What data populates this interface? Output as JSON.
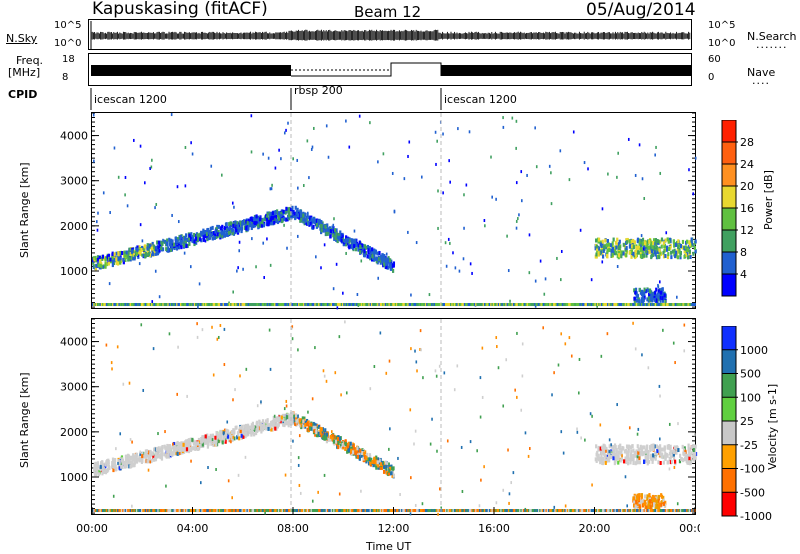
{
  "header": {
    "station": "Kapuskasing (fitACF)",
    "beam": "Beam 12",
    "date": "05/Aug/2014"
  },
  "nsky": {
    "left_label": "N.Sky",
    "left_ticks": [
      "10^5",
      "10^0"
    ],
    "right_ticks": [
      "10^5",
      "10^0"
    ],
    "right_label": "N.Search",
    "right_legend": "......."
  },
  "freq": {
    "left_label_1": "Freq.",
    "left_label_2": "[MHz]",
    "left_ticks": [
      "18",
      "8"
    ],
    "right_ticks": [
      "60",
      "0"
    ],
    "right_label": "Nave",
    "right_legend": "....",
    "cpid_label": "CPID",
    "modes": [
      "icescan 1200",
      "rbsp 200",
      "icescan 1200"
    ]
  },
  "chart_data": [
    {
      "type": "heatmap",
      "name": "power",
      "ylabel": "Slant Range [km]",
      "yticks": [
        "1000",
        "2000",
        "3000",
        "4000"
      ],
      "ylim": [
        180,
        4500
      ],
      "xlim": [
        "00:00",
        "24:00"
      ],
      "colorbar_label": "Power [dB]",
      "colorbar_ticks": [
        "4",
        "8",
        "12",
        "16",
        "20",
        "24",
        "28"
      ],
      "colorbar_colors": [
        "#0000ff",
        "#2060d0",
        "#40a060",
        "#60c040",
        "#e8d830",
        "#ff9020",
        "#ff6010",
        "#ff2000"
      ],
      "features": [
        {
          "t0": 0.0,
          "t1": 2.5,
          "r0": 1150,
          "r1": 1500,
          "level": "low-mid"
        },
        {
          "t0": 2.5,
          "t1": 8.0,
          "r0": 1500,
          "r1": 2300,
          "level": "low"
        },
        {
          "t0": 8.0,
          "t1": 12.0,
          "r0": 1100,
          "r1": 2300,
          "level": "low"
        },
        {
          "t0": 20.0,
          "t1": 24.0,
          "r0": 1300,
          "r1": 1700,
          "level": "mid"
        },
        {
          "t0": 21.5,
          "t1": 22.8,
          "r0": 300,
          "r1": 600,
          "level": "low"
        }
      ]
    },
    {
      "type": "heatmap",
      "name": "velocity",
      "ylabel": "Slant Range [km]",
      "yticks": [
        "1000",
        "2000",
        "3000",
        "4000"
      ],
      "ylim": [
        180,
        4500
      ],
      "xlabel": "Time UT",
      "xticks": [
        "00:00",
        "04:00",
        "08:00",
        "12:00",
        "16:00",
        "20:00",
        "00:00"
      ],
      "colorbar_label": "Velocity [m s-1]",
      "colorbar_ticks": [
        "1000",
        "500",
        "100",
        "25",
        "-25",
        "-100",
        "-500",
        "-1000"
      ],
      "colorbar_colors": [
        "#1030ff",
        "#2070b0",
        "#40a050",
        "#60d040",
        "#c8c8c8",
        "#ffa000",
        "#ff7000",
        "#ff0000"
      ],
      "features": [
        {
          "t0": 0.0,
          "t1": 2.5,
          "r0": 1150,
          "r1": 1500,
          "level": "grey"
        },
        {
          "t0": 2.5,
          "t1": 8.0,
          "r0": 1500,
          "r1": 2300,
          "level": "grey"
        },
        {
          "t0": 8.0,
          "t1": 12.0,
          "r0": 1100,
          "r1": 2300,
          "level": "mixed"
        },
        {
          "t0": 20.0,
          "t1": 24.0,
          "r0": 1300,
          "r1": 1700,
          "level": "grey"
        },
        {
          "t0": 21.5,
          "t1": 22.8,
          "r0": 300,
          "r1": 600,
          "level": "orange"
        }
      ]
    }
  ]
}
